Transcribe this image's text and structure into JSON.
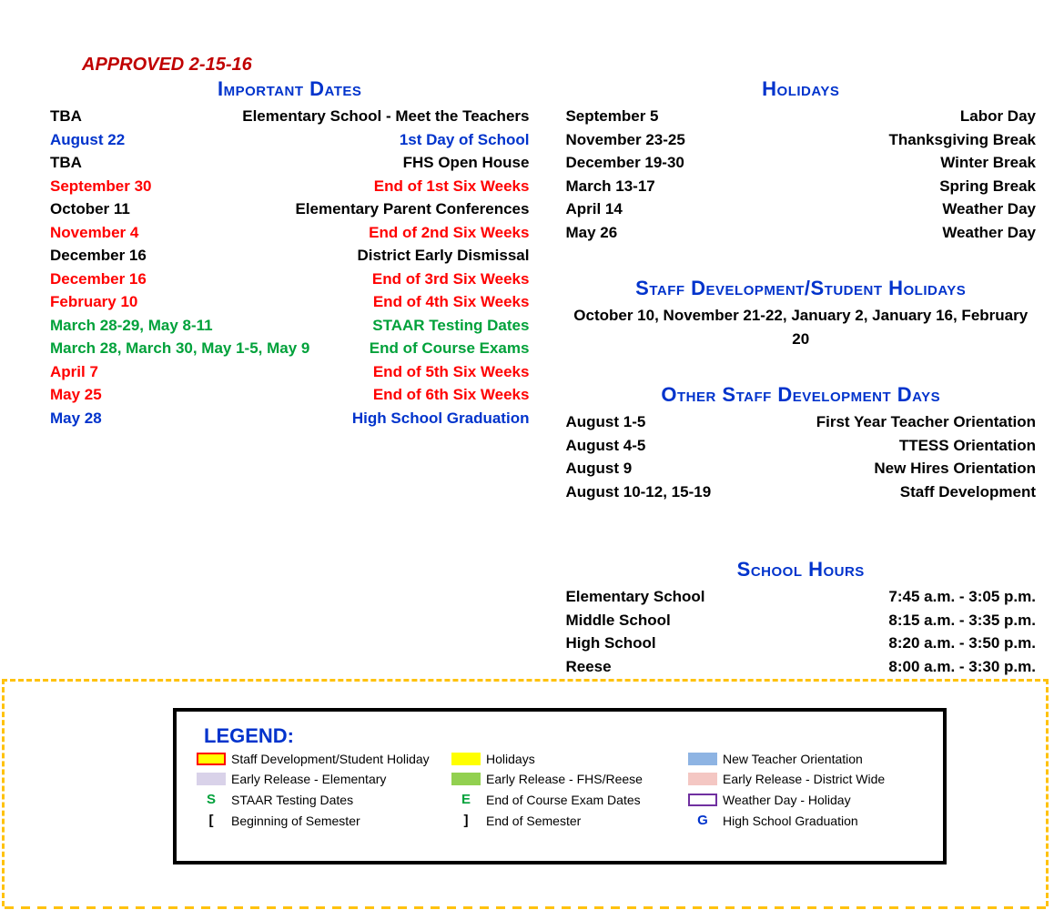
{
  "approved": "APPROVED 2-15-16",
  "left": {
    "title": "Important Dates",
    "rows": [
      {
        "l": "TBA",
        "r": "Elementary School - Meet the Teachers",
        "cls": "c-black"
      },
      {
        "l": "August 22",
        "r": "1st Day of School",
        "cls": "c-blue"
      },
      {
        "l": "TBA",
        "r": "FHS Open House",
        "cls": "c-black"
      },
      {
        "l": "September 30",
        "r": "End of 1st Six Weeks",
        "cls": "c-red"
      },
      {
        "l": "October 11",
        "r": "Elementary Parent Conferences",
        "cls": "c-black"
      },
      {
        "l": "November 4",
        "r": "End of 2nd Six Weeks",
        "cls": "c-red"
      },
      {
        "l": "December 16",
        "r": "District Early Dismissal",
        "cls": "c-black"
      },
      {
        "l": "December 16",
        "r": "End of 3rd Six Weeks",
        "cls": "c-red"
      },
      {
        "l": "February 10",
        "r": "End of 4th Six Weeks",
        "cls": "c-red"
      },
      {
        "l": "March 28-29, May 8-11",
        "r": "STAAR Testing Dates",
        "cls": "c-green"
      },
      {
        "l": "March 28, March 30, May 1-5, May 9",
        "r": "End of Course Exams",
        "cls": "c-green"
      },
      {
        "l": "April 7",
        "r": "End of 5th Six Weeks",
        "cls": "c-red"
      },
      {
        "l": "May 25",
        "r": "End of 6th Six Weeks",
        "cls": "c-red"
      },
      {
        "l": "May 28",
        "r": "High School Graduation",
        "cls": "c-blue"
      }
    ]
  },
  "holidays": {
    "title": "Holidays",
    "rows": [
      {
        "l": "September 5",
        "r": "Labor Day"
      },
      {
        "l": "November 23-25",
        "r": "Thanksgiving Break"
      },
      {
        "l": "December 19-30",
        "r": "Winter Break"
      },
      {
        "l": "March 13-17",
        "r": "Spring Break"
      },
      {
        "l": "April 14",
        "r": "Weather Day"
      },
      {
        "l": "May 26",
        "r": "Weather Day"
      }
    ]
  },
  "staffdev": {
    "title": "Staff Development/Student Holidays",
    "line": "October 10, November 21-22, January 2, January 16, February 20"
  },
  "otherstaff": {
    "title": "Other Staff Development Days",
    "rows": [
      {
        "l": "August 1-5",
        "r": "First Year Teacher Orientation"
      },
      {
        "l": "August 4-5",
        "r": "TTESS Orientation"
      },
      {
        "l": "August 9",
        "r": "New Hires Orientation"
      },
      {
        "l": "August 10-12, 15-19",
        "r": "Staff Development"
      }
    ]
  },
  "hours": {
    "title": "School Hours",
    "rows": [
      {
        "l": "Elementary School",
        "r": "7:45 a.m. - 3:05 p.m."
      },
      {
        "l": "Middle School",
        "r": "8:15 a.m. - 3:35 p.m."
      },
      {
        "l": "High School",
        "r": "8:20 a.m. - 3:50 p.m."
      },
      {
        "l": "Reese",
        "r": "8:00 a.m. - 3:30 p.m."
      }
    ]
  },
  "legend": {
    "title": "LEGEND:",
    "items": [
      [
        {
          "sw": "sw-yellow-redborder",
          "t": "Staff Development/Student Holiday"
        },
        {
          "sw": "sw-yellow",
          "t": "Holidays"
        },
        {
          "sw": "sw-blue",
          "t": "New Teacher Orientation"
        }
      ],
      [
        {
          "sw": "sw-lav",
          "t": "Early Release  - Elementary"
        },
        {
          "sw": "sw-green",
          "t": "Early Release - FHS/Reese"
        },
        {
          "sw": "sw-pink",
          "t": "Early Release  - District Wide"
        }
      ],
      [
        {
          "sym": "S",
          "symcls": "sym-green",
          "t": "STAAR Testing Dates"
        },
        {
          "sym": "E",
          "symcls": "sym-green",
          "t": "End of Course Exam Dates"
        },
        {
          "sw": "sw-purpleborder",
          "t": "Weather Day - Holiday"
        }
      ],
      [
        {
          "sym": "[",
          "symcls": "sym-black",
          "t": "Beginning of Semester"
        },
        {
          "sym": "]",
          "symcls": "sym-black",
          "t": "End of Semester"
        },
        {
          "sym": "G",
          "symcls": "sym-blue",
          "t": "High School Graduation"
        }
      ]
    ]
  }
}
